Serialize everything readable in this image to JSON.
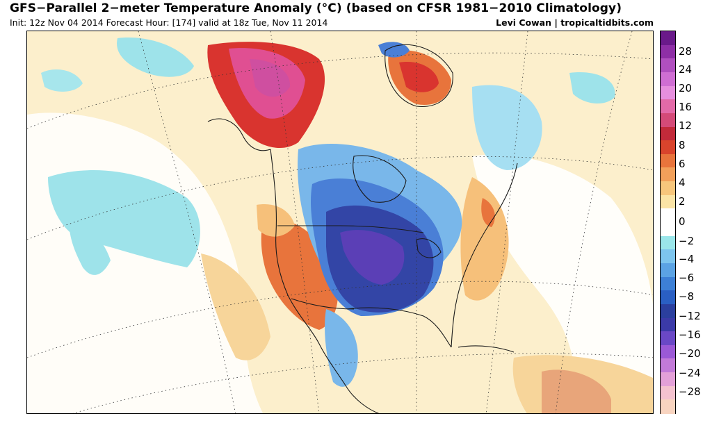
{
  "header": {
    "title": "GFS−Parallel 2−meter Temperature Anomaly (°C) (based on CFSR 1981−2010 Climatology)",
    "subtitle": "Init: 12z Nov 04 2014 Forecast Hour: [174]  valid at 18z Tue, Nov 11 2014",
    "credit": "Levi Cowan | tropicaltidbits.com"
  },
  "colorbar": {
    "units": "°C",
    "labels": [
      "28",
      "24",
      "20",
      "16",
      "12",
      "8",
      "6",
      "4",
      "2",
      "0",
      "−2",
      "−4",
      "−6",
      "−8",
      "−12",
      "−16",
      "−20",
      "−24",
      "−28"
    ],
    "colors": [
      "#6a1a8a",
      "#8e2fa6",
      "#b04fbf",
      "#cf6ed3",
      "#e68fde",
      "#e36aa8",
      "#d44a78",
      "#c22a3a",
      "#d9442c",
      "#e8743c",
      "#f2a05a",
      "#f7c67c",
      "#fbe4a6",
      "#ffffff",
      "#ffffff",
      "#9ae6ea",
      "#7dc5ee",
      "#5ba3e4",
      "#3d80d6",
      "#2a5fc3",
      "#2b3f9e",
      "#3b3aa8",
      "#6a48c6",
      "#9b59d6",
      "#c27ad8",
      "#e3a0d8",
      "#f4c2cf",
      "#f8d4c0"
    ]
  },
  "map": {
    "palette": {
      "warm_light": "#fbe7b3",
      "warm_mid": "#f6c07a",
      "warm_strong": "#e8743c",
      "hot": "#d9342f",
      "very_hot": "#e04f92",
      "cool_light": "#9ee3ea",
      "cool_mid": "#79b7ea",
      "cold": "#4a7fd6",
      "very_cold": "#3345a6",
      "extreme_cold": "#5b3fb6",
      "neutral": "#ffffff"
    }
  }
}
